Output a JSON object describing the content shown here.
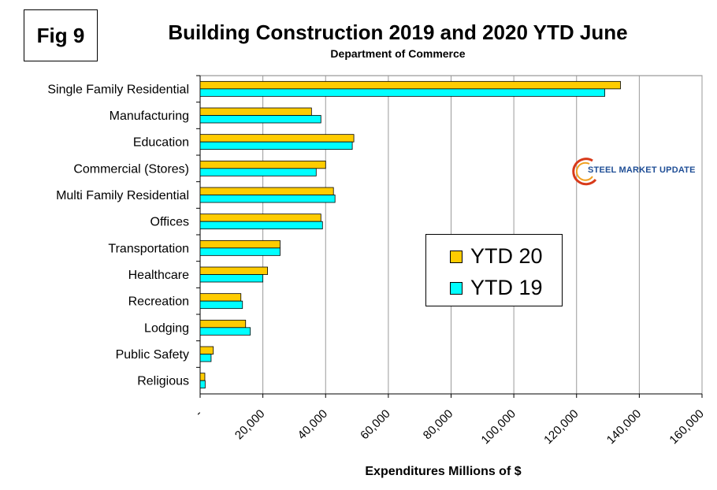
{
  "figure_label": "Fig 9",
  "logo": {
    "text": "STEEL MARKET UPDATE"
  },
  "chart_data": {
    "type": "bar",
    "orientation": "horizontal",
    "title": "Building Construction 2019 and 2020 YTD June",
    "subtitle": "Department of Commerce",
    "xlabel": "Expenditures Millions of $",
    "ylabel": "",
    "xlim": [
      0,
      160000
    ],
    "x_ticks": [
      0,
      20000,
      40000,
      60000,
      80000,
      100000,
      120000,
      140000,
      160000
    ],
    "x_tick_labels": [
      "-",
      "20,000",
      "40,000",
      "60,000",
      "80,000",
      "100,000",
      "120,000",
      "140,000",
      "160,000"
    ],
    "grid": "vertical",
    "legend_position": "center-right",
    "categories": [
      "Single Family Residential",
      "Manufacturing",
      "Education",
      "Commercial (Stores)",
      "Multi Family Residential",
      "Offices",
      "Transportation",
      "Healthcare",
      "Recreation",
      "Lodging",
      "Public Safety",
      "Religious"
    ],
    "series": [
      {
        "name": "YTD 20",
        "color": "#ffcc00",
        "values": [
          134000,
          35500,
          49000,
          40000,
          42500,
          38500,
          25500,
          21500,
          13000,
          14500,
          4200,
          1500
        ]
      },
      {
        "name": "YTD 19",
        "color": "#00ffff",
        "values": [
          129000,
          38500,
          48500,
          37000,
          43000,
          39000,
          25500,
          20000,
          13500,
          16000,
          3500,
          1600
        ]
      }
    ]
  }
}
